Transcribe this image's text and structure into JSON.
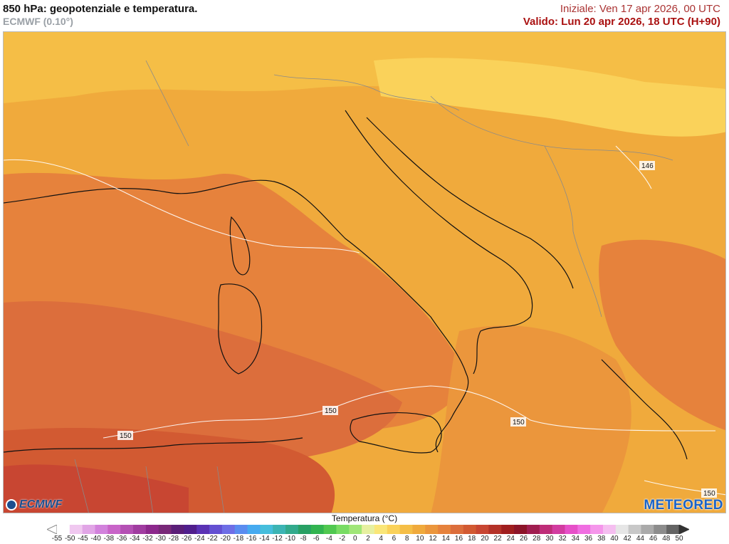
{
  "header": {
    "title": "850 hPa: geopotenziale e temperatura.",
    "model": "ECMWF (0.10°)",
    "init": "Iniziale: Ven 17 apr 2026, 00 UTC",
    "valid": "Valido: Lun 20 apr 2026, 18 UTC (H+90)"
  },
  "map": {
    "contour_labels": [
      "146",
      "150",
      "150",
      "150",
      "150"
    ]
  },
  "logos": {
    "ecmwf": "ECMWF",
    "meteored": "METEORED"
  },
  "legend": {
    "title": "Temperatura (°C)",
    "ticks": [
      "-55",
      "-50",
      "-45",
      "-40",
      "-38",
      "-36",
      "-34",
      "-32",
      "-30",
      "-28",
      "-26",
      "-24",
      "-22",
      "-20",
      "-18",
      "-16",
      "-14",
      "-12",
      "-10",
      "-8",
      "-6",
      "-4",
      "-2",
      "0",
      "2",
      "4",
      "6",
      "8",
      "10",
      "12",
      "14",
      "16",
      "18",
      "20",
      "22",
      "24",
      "26",
      "28",
      "30",
      "32",
      "34",
      "36",
      "38",
      "40",
      "42",
      "44",
      "46",
      "48",
      "50"
    ],
    "colors": [
      "#ffffff",
      "#f0c8f0",
      "#e1a5e6",
      "#d282dc",
      "#c864c8",
      "#b450b4",
      "#a03ca0",
      "#8c288c",
      "#782878",
      "#5a1e78",
      "#501e8c",
      "#5a32b4",
      "#6450d2",
      "#6e6ee6",
      "#5a8cf0",
      "#46aaf0",
      "#46bedc",
      "#3cb4b4",
      "#32aa8c",
      "#28a064",
      "#32b450",
      "#50c850",
      "#78dc64",
      "#a0e678",
      "#e6f0a0",
      "#fae678",
      "#fad25a",
      "#f5be46",
      "#f0aa3c",
      "#eb963c",
      "#e6823c",
      "#dc6e3c",
      "#d25a32",
      "#c84632",
      "#b43228",
      "#a01e1e",
      "#8c1428",
      "#a01e50",
      "#be2d78",
      "#d23ca0",
      "#e650c8",
      "#f06ee1",
      "#f596eb",
      "#f5bef0",
      "#e6e6e6",
      "#c8c8c8",
      "#aaaaaa",
      "#8c8c8c",
      "#646464"
    ]
  }
}
